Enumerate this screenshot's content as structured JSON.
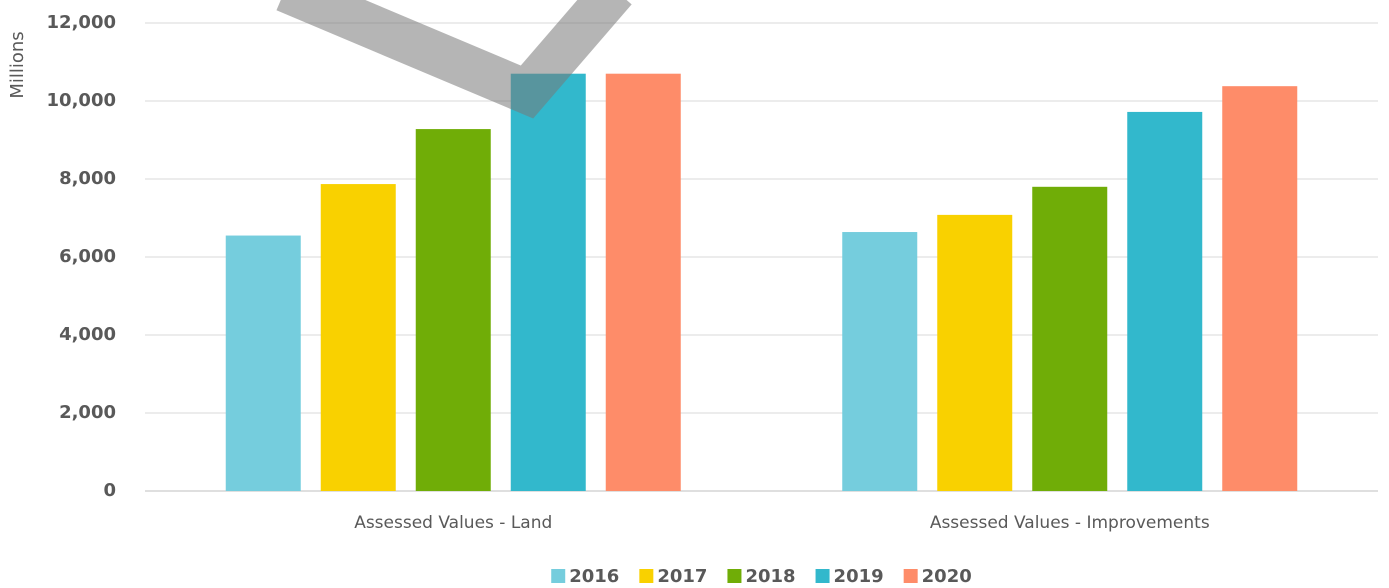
{
  "chart_data": {
    "type": "bar",
    "y_axis_label": "Millions",
    "categories": [
      "Assessed Values - Land",
      "Assessed Values - Improvements"
    ],
    "series": [
      {
        "name": "2016",
        "color": "#75cddd",
        "values": [
          6550,
          6640
        ]
      },
      {
        "name": "2017",
        "color": "#f9d100",
        "values": [
          7870,
          7080
        ]
      },
      {
        "name": "2018",
        "color": "#70ad07",
        "values": [
          9280,
          7800
        ]
      },
      {
        "name": "2019",
        "color": "#32b8cc",
        "values": [
          10700,
          9720
        ]
      },
      {
        "name": "2020",
        "color": "#fe8c69",
        "values": [
          10700,
          10380
        ]
      }
    ],
    "ylim": [
      0,
      12000
    ],
    "yticks": [
      0,
      {
        "value": 2000,
        "label": "2,000"
      },
      {
        "value": 4000,
        "label": "4,000"
      },
      {
        "value": 6000,
        "label": "6,000"
      },
      {
        "value": 8000,
        "label": "8,000"
      },
      {
        "value": 10000,
        "label": "10,000"
      },
      {
        "value": 12000,
        "label": "12,000"
      }
    ],
    "grid": true,
    "legend": "bottom"
  }
}
